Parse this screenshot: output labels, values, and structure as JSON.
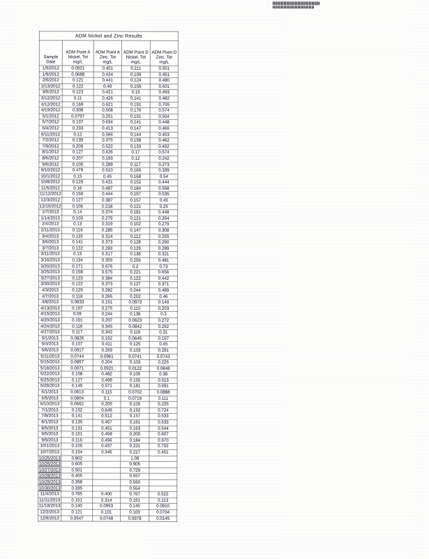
{
  "table": {
    "title": "ADM Nickel and Zinc Results",
    "columns": [
      "Sample\nDate",
      "ADM Point A\nNickel, Tot\nmg/L",
      "ADM Point A\nZinc, Tot\nmg/L",
      "ADM Point D\nNickel, Tot\nmg/L",
      "ADM Point D\nZinc, Tot\nmg/L"
    ],
    "rows": [
      {
        "date": "1/5/2012",
        "values": [
          "0.0921",
          "0.451",
          "0.211",
          "0.551"
        ]
      },
      {
        "date": "1/9/2012",
        "values": [
          "0.0688",
          "0.424",
          "0.109",
          "0.451"
        ]
      },
      {
        "date": "2/6/2012",
        "values": [
          "0.121",
          "0.441",
          "0.124",
          "0.480"
        ]
      },
      {
        "date": "2/13/2012",
        "values": [
          "0.122",
          "0.49",
          "0.159",
          "0.601"
        ]
      },
      {
        "date": "3/5/2012",
        "values": [
          "0.123",
          "0.421",
          "0.15",
          "0.493"
        ]
      },
      {
        "date": "3/12/2012",
        "values": [
          "0.11",
          "0.426",
          "0.141",
          "0.482"
        ]
      },
      {
        "date": "4/12/2012",
        "values": [
          "0.169",
          "0.621",
          "0.191",
          "0.705"
        ]
      },
      {
        "date": "4/19/2012",
        "values": [
          "0.308",
          "0.508",
          "0.176",
          "0.574"
        ]
      },
      {
        "date": "5/1/2012",
        "values": [
          "0.0797",
          "0.251",
          "0.151",
          "0.504"
        ]
      },
      {
        "date": "5/7/2012",
        "values": [
          "0.137",
          "0.634",
          "0.141",
          "0.448"
        ]
      },
      {
        "date": "6/4/2012",
        "values": [
          "0.233",
          "0.413",
          "0.147",
          "0.466"
        ]
      },
      {
        "date": "6/11/2012",
        "values": [
          "0.12",
          "0.566",
          "0.144",
          "0.453"
        ]
      },
      {
        "date": "7/2/2012",
        "values": [
          "0.139",
          "0.375",
          "0.158",
          "0.462"
        ]
      },
      {
        "date": "7/9/2012",
        "values": [
          "0.209",
          "0.522",
          "0.133",
          "0.402"
        ]
      },
      {
        "date": "8/1/2012",
        "values": [
          "0.127",
          "0.426",
          "0.17",
          "0.574"
        ]
      },
      {
        "date": "8/6/2012",
        "values": [
          "0.207",
          "0.193",
          "0.12",
          "0.242"
        ]
      },
      {
        "date": "9/6/2012",
        "values": [
          "0.105",
          "0.289",
          "0.117",
          "0.273"
        ]
      },
      {
        "date": "9/10/2012",
        "values": [
          "0.479",
          "0.510",
          "0.165",
          "0.339"
        ]
      },
      {
        "date": "10/1/2012",
        "values": [
          "0.15",
          "0.45",
          "0.168",
          "0.54"
        ]
      },
      {
        "date": "10/8/2012",
        "values": [
          "0.129",
          "0.421",
          "0.152",
          "0.444"
        ]
      },
      {
        "date": "11/5/2012",
        "values": [
          "0.16",
          "0.487",
          "0.184",
          "0.568"
        ]
      },
      {
        "date": "11/12/2012",
        "values": [
          "0.158",
          "0.444",
          "0.197",
          "0.535"
        ]
      },
      {
        "date": "12/3/2012",
        "values": [
          "0.127",
          "0.387",
          "0.157",
          "0.45"
        ]
      },
      {
        "date": "12/10/2012",
        "values": [
          "0.106",
          "0.218",
          "0.121",
          "0.25"
        ]
      },
      {
        "date": "1/7/2013",
        "values": [
          "0.14",
          "0.374",
          "0.181",
          "0.448"
        ]
      },
      {
        "date": "1/14/2013",
        "values": [
          "0.103",
          "0.279",
          "0.121",
          "0.264"
        ]
      },
      {
        "date": "2/4/2013",
        "values": [
          "0.13",
          "0.319",
          "0.102",
          "0.279"
        ]
      },
      {
        "date": "2/11/2013",
        "values": [
          "0.116",
          "0.285",
          "0.147",
          "0.308"
        ]
      },
      {
        "date": "3/4/2013",
        "values": [
          "0.135",
          "0.314",
          "0.112",
          "0.255"
        ]
      },
      {
        "date": "3/6/2013",
        "values": [
          "0.141",
          "0.373",
          "0.128",
          "0.260"
        ]
      },
      {
        "date": "3/7/2013",
        "values": [
          "0.122",
          "0.283",
          "0.129",
          "0.289"
        ]
      },
      {
        "date": "3/11/2013",
        "values": [
          "0.13",
          "0.317",
          "0.138",
          "0.321"
        ]
      },
      {
        "date": "3/16/2013",
        "values": [
          "0.134",
          "0.355",
          "0.256",
          "0.481"
        ]
      },
      {
        "date": "3/20/2013",
        "values": [
          "0.171",
          "0.676",
          "0.2",
          "0.73"
        ]
      },
      {
        "date": "3/25/2013",
        "values": [
          "0.158",
          "0.575",
          "0.221",
          "0.656"
        ]
      },
      {
        "date": "3/27/2013",
        "values": [
          "0.123",
          "0.384",
          "0.122",
          "0.442"
        ]
      },
      {
        "date": "3/30/2013",
        "values": [
          "0.122",
          "0.373",
          "0.127",
          "0.371"
        ]
      },
      {
        "date": "4/3/2013",
        "values": [
          "0.129",
          "0.282",
          "0.244",
          "0.489"
        ]
      },
      {
        "date": "4/7/2013",
        "values": [
          "0.118",
          "0.265",
          "0.202",
          "0.46"
        ]
      },
      {
        "date": "4/8/2013",
        "values": [
          "0.0833",
          "0.151",
          "0.0973",
          "0.149"
        ]
      },
      {
        "date": "4/13/2013",
        "values": [
          "0.107",
          "0.275",
          "0.115",
          "0.203"
        ]
      },
      {
        "date": "4/15/2013",
        "values": [
          "0.09",
          "0.244",
          "0.136",
          "0.3"
        ]
      },
      {
        "date": "4/20/2013",
        "values": [
          "0.101",
          "0.207",
          "0.0623",
          "0.272"
        ]
      },
      {
        "date": "4/24/2013",
        "values": [
          "0.116",
          "0.345",
          "0.0842",
          "0.292"
        ]
      },
      {
        "date": "4/27/2013",
        "values": [
          "0.117",
          "0.342",
          "0.116",
          "0.31"
        ]
      },
      {
        "date": "5/1/2013",
        "values": [
          "0.0826",
          "0.162",
          "0.0645",
          "0.157"
        ]
      },
      {
        "date": "5/4/2013",
        "values": [
          "0.107",
          "0.411",
          "0.125",
          "0.45"
        ]
      },
      {
        "date": "5/6/2013",
        "values": [
          "0.0917",
          "0.269",
          "0.103",
          "0.281"
        ]
      },
      {
        "date": "5/11/2013",
        "values": [
          "0.0744",
          "0.0961",
          "0.0741",
          "0.0743"
        ]
      },
      {
        "date": "5/15/2013",
        "values": [
          "0.0857",
          "0.204",
          "0.103",
          "0.225"
        ]
      },
      {
        "date": "5/18/2013",
        "values": [
          "0.0071",
          "0.0921",
          "0.0122",
          "0.0848"
        ]
      },
      {
        "date": "5/22/2013",
        "values": [
          "0.108",
          "0.482",
          "0.105",
          "0.38"
        ]
      },
      {
        "date": "5/25/2013",
        "values": [
          "0.127",
          "0.499",
          "0.155",
          "0.513"
        ]
      },
      {
        "date": "5/29/2013",
        "values": [
          "0.145",
          "0.571",
          "0.181",
          "0.691"
        ]
      },
      {
        "date": "6/1/2013",
        "values": [
          "0.0613",
          "0.115",
          "0.0702",
          "0.0888"
        ]
      },
      {
        "date": "6/5/2013",
        "values": [
          "0.0804",
          "0.1",
          "0.0719",
          "0.111"
        ]
      },
      {
        "date": "6/10/2013",
        "values": [
          "0.0662",
          "0.205",
          "0.105",
          "0.225"
        ]
      },
      {
        "date": "7/1/2013",
        "values": [
          "0.152",
          "0.649",
          "0.192",
          "0.724"
        ]
      },
      {
        "date": "7/8/2013",
        "values": [
          "0.141",
          "0.512",
          "0.157",
          "0.533"
        ]
      },
      {
        "date": "8/1/2013",
        "values": [
          "0.135",
          "0.457",
          "0.161",
          "0.533"
        ]
      },
      {
        "date": "8/5/2013",
        "values": [
          "0.131",
          "0.451",
          "0.163",
          "0.544"
        ]
      },
      {
        "date": "9/5/2013",
        "values": [
          "0.151",
          "0.458",
          "0.200",
          "0.607"
        ]
      },
      {
        "date": "9/9/2013",
        "values": [
          "0.116",
          "0.456",
          "0.184",
          "0.670"
        ]
      },
      {
        "date": "10/1/2013",
        "values": [
          "0.105",
          "0.457",
          "0.221",
          "0.702"
        ]
      },
      {
        "date": "10/7/2013",
        "values": [
          "0.154",
          "0.346",
          "0.217",
          "0.451"
        ]
      },
      {
        "date": "10/25/2013",
        "values": [
          "0.802",
          "",
          "1.09",
          ""
        ],
        "u": true
      },
      {
        "date": "10/26/2013",
        "values": [
          "0.605",
          "",
          "0.905",
          ""
        ],
        "u": true
      },
      {
        "date": "10/27/2013",
        "values": [
          "0.501",
          "",
          "0.729",
          ""
        ],
        "u": true
      },
      {
        "date": "10/28/2013",
        "values": [
          "0.405",
          "",
          "0.557",
          ""
        ],
        "u": true
      },
      {
        "date": "10/29/2013",
        "values": [
          "0.358",
          "",
          "0.560",
          ""
        ],
        "u": true
      },
      {
        "date": "10/30/2013",
        "values": [
          "0.335",
          "",
          "0.554",
          ""
        ],
        "u": true
      },
      {
        "date": "11/4/2013",
        "values": [
          "0.785",
          "0.400",
          "0.767",
          "0.522"
        ]
      },
      {
        "date": "11/11/2013",
        "values": [
          "0.151",
          "0.314",
          "0.191",
          "0.113"
        ]
      },
      {
        "date": "11/18/2013",
        "values": [
          "0.140",
          "0.0953",
          "0.145",
          "0.0910"
        ]
      },
      {
        "date": "12/2/2013",
        "values": [
          "0.121",
          "0.101",
          "0.103",
          "0.0704"
        ]
      },
      {
        "date": "12/9/2013",
        "values": [
          "0.0547",
          "0.0748",
          "0.0978",
          "0.0145"
        ]
      }
    ]
  }
}
